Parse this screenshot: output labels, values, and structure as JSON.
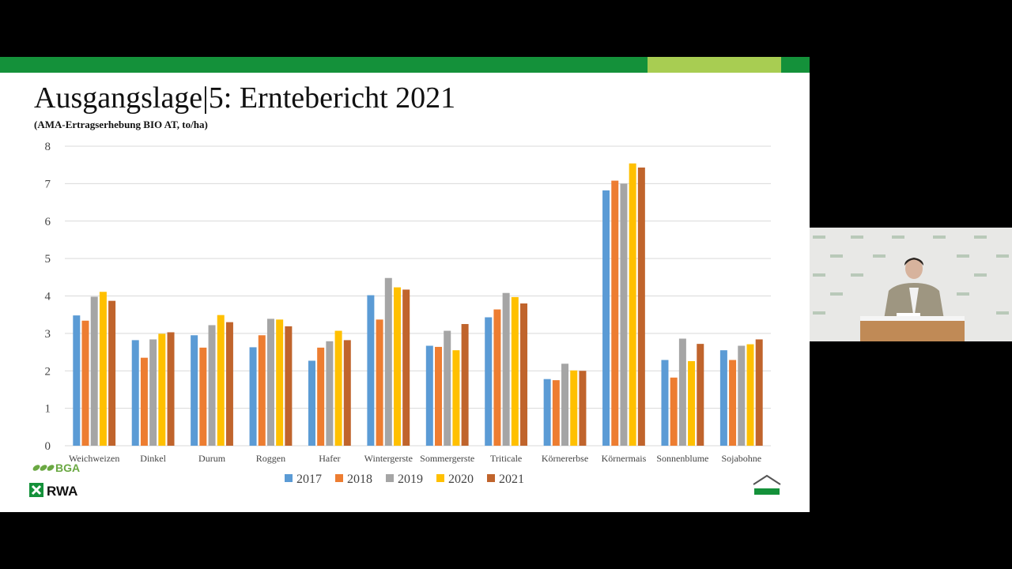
{
  "slide": {
    "title": "Ausgangslage|5: Erntebericht 2021",
    "subtitle": "(AMA-Ertragserhebung BIO AT, to/ha)"
  },
  "logos": {
    "bga": "BGA",
    "rwa": "RWA"
  },
  "colors": {
    "header_green": "#14913a",
    "header_lime": "#a8cd52",
    "series": [
      "#5b9bd5",
      "#ed7d31",
      "#a5a5a5",
      "#ffc000",
      "#c0642c"
    ]
  },
  "chart_data": {
    "type": "bar",
    "title": "",
    "xlabel": "",
    "ylabel": "",
    "ylim": [
      0,
      8
    ],
    "yticks": [
      0,
      1,
      2,
      3,
      4,
      5,
      6,
      7,
      8
    ],
    "grid": true,
    "legend_position": "bottom",
    "categories": [
      "Weichweizen",
      "Dinkel",
      "Durum",
      "Roggen",
      "Hafer",
      "Wintergerste",
      "Sommergerste",
      "Triticale",
      "Körnererbse",
      "Körnermais",
      "Sonnenblume",
      "Sojabohne"
    ],
    "series": [
      {
        "name": "2017",
        "values": [
          3.48,
          2.82,
          2.95,
          2.63,
          2.27,
          4.02,
          2.67,
          3.43,
          1.78,
          6.82,
          2.29,
          2.55
        ]
      },
      {
        "name": "2018",
        "values": [
          3.34,
          2.35,
          2.62,
          2.95,
          2.62,
          3.37,
          2.64,
          3.64,
          1.75,
          7.08,
          1.82,
          2.29
        ]
      },
      {
        "name": "2019",
        "values": [
          3.98,
          2.84,
          3.22,
          3.39,
          2.79,
          4.48,
          3.07,
          4.08,
          2.19,
          7.0,
          2.86,
          2.67
        ]
      },
      {
        "name": "2020",
        "values": [
          4.11,
          2.99,
          3.49,
          3.37,
          3.07,
          4.23,
          2.55,
          3.97,
          2.01,
          7.54,
          2.26,
          2.71
        ]
      },
      {
        "name": "2021",
        "values": [
          3.87,
          3.03,
          3.3,
          3.19,
          2.82,
          4.17,
          3.25,
          3.8,
          2.0,
          7.43,
          2.72,
          2.84
        ]
      }
    ]
  }
}
